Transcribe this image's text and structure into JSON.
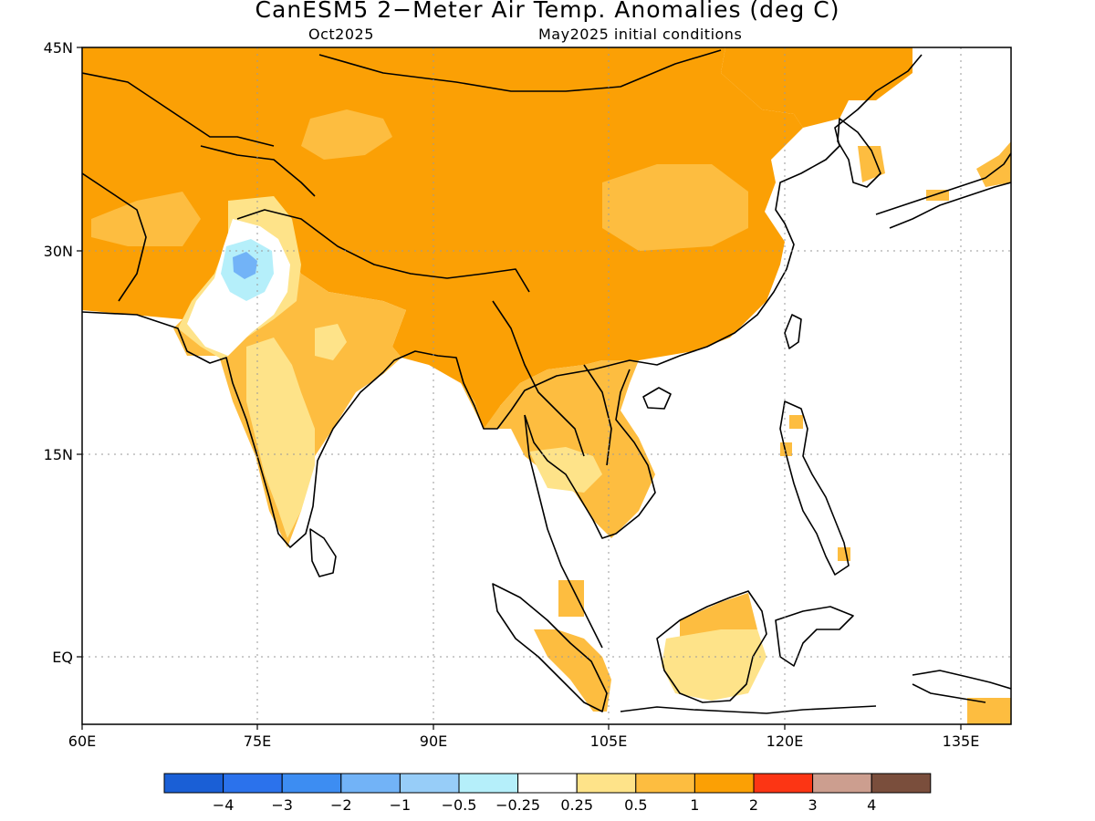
{
  "header": {
    "title": "CanESM5 2−Meter Air Temp. Anomalies (deg C)",
    "month": "Oct2025",
    "init": "May2025 initial conditions"
  },
  "axes": {
    "lat_labels": [
      "45N",
      "30N",
      "15N",
      "EQ"
    ],
    "lon_labels": [
      "60E",
      "75E",
      "90E",
      "105E",
      "120E",
      "135E"
    ]
  },
  "colorbar": {
    "colors": [
      "#1a5fd6",
      "#2b72ec",
      "#3d8df2",
      "#72b3f7",
      "#97cdf8",
      "#b5effa",
      "#ffffff",
      "#fee389",
      "#fdbd40",
      "#fba005",
      "#fc3514",
      "#cc9e8f",
      "#7a4e3c"
    ],
    "labels": [
      "−4",
      "−3",
      "−2",
      "−1",
      "−0.5",
      "−0.25",
      "0.25",
      "0.5",
      "1",
      "2",
      "3",
      "4"
    ]
  }
}
